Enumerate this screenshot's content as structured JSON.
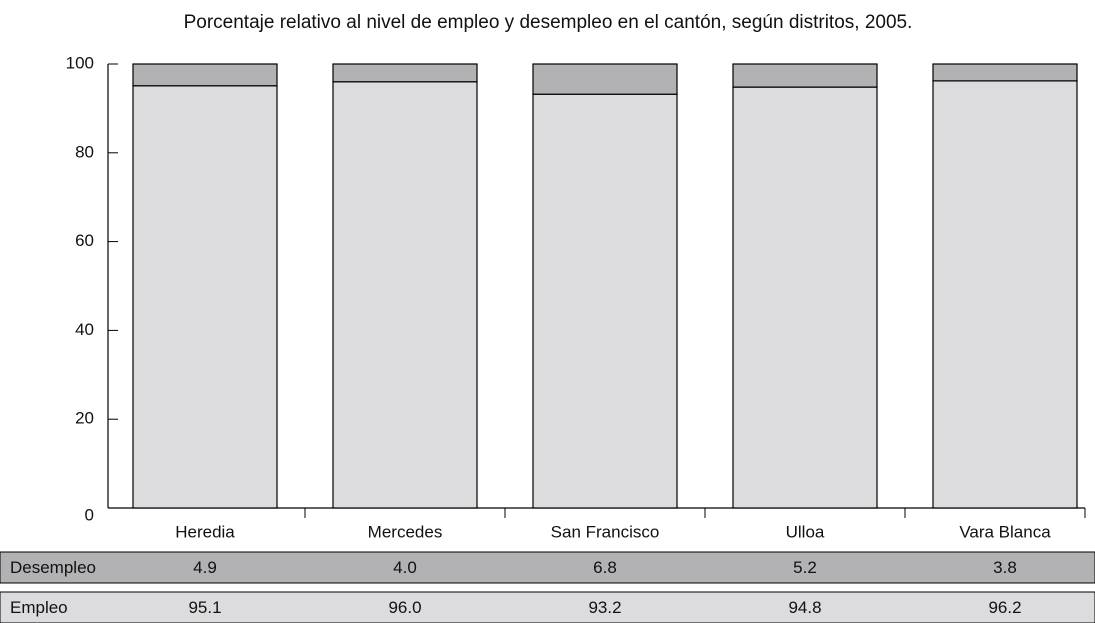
{
  "chart_data": {
    "type": "stacked_bar",
    "title": "Porcentaje relativo al nivel de empleo y desempleo en el cantón, según distritos, 2005.",
    "categories": [
      "Heredia",
      "Mercedes",
      "San Francisco",
      "Ulloa",
      "Vara Blanca"
    ],
    "series": [
      {
        "name": "Desempleo",
        "color": "#b2b2b4",
        "values": [
          4.9,
          4.0,
          6.8,
          5.2,
          3.8
        ],
        "value_labels": [
          "4.9",
          "4.0",
          "6.8",
          "5.2",
          "3.8"
        ]
      },
      {
        "name": "Empleo",
        "color": "#dcdcde",
        "values": [
          95.1,
          96.0,
          93.2,
          94.8,
          96.2
        ],
        "value_labels": [
          "95.1",
          "96.0",
          "93.2",
          "94.8",
          "96.2"
        ]
      }
    ],
    "ylim": [
      0,
      100
    ],
    "yticks": [
      0,
      20,
      40,
      60,
      80,
      100
    ],
    "grid": false
  }
}
